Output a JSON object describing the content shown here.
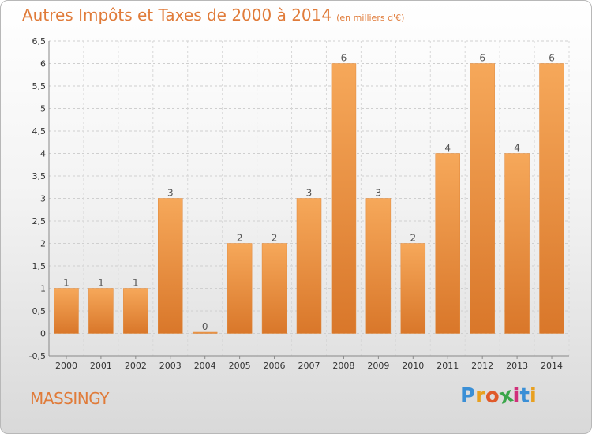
{
  "header": {
    "title": "Autres Impôts et Taxes de 2000 à 2014",
    "unit": "(en milliers d'€)"
  },
  "footer": {
    "commune": "MASSINGY",
    "logo_letters": [
      "P",
      "r",
      "o",
      "x",
      "i",
      "t",
      "i"
    ]
  },
  "colors": {
    "title": "#e07b39",
    "bar_light": "#f6a85a",
    "bar_dark": "#d9772a",
    "logo": [
      "#3a8fd6",
      "#e8a020",
      "#e05a2a",
      "#3aa64a",
      "#d0307a",
      "#3a8fd6",
      "#e8a020"
    ]
  },
  "chart_data": {
    "type": "bar",
    "categories": [
      "2000",
      "2001",
      "2002",
      "2003",
      "2004",
      "2005",
      "2006",
      "2007",
      "2008",
      "2009",
      "2010",
      "2011",
      "2012",
      "2013",
      "2014"
    ],
    "values": [
      1,
      1,
      1,
      3,
      0,
      2,
      2,
      3,
      6,
      3,
      2,
      4,
      6,
      4,
      6
    ],
    "value_labels": [
      "1",
      "1",
      "1",
      "3",
      "0",
      "2",
      "2",
      "3",
      "6",
      "3",
      "2",
      "4",
      "6",
      "4",
      "6"
    ],
    "ylim": [
      -0.5,
      6.5
    ],
    "yticks": [
      "-0,5",
      "0",
      "0,5",
      "1",
      "1,5",
      "2",
      "2,5",
      "3",
      "3,5",
      "4",
      "4,5",
      "5",
      "5,5",
      "6",
      "6,5"
    ],
    "ytick_values": [
      -0.5,
      0,
      0.5,
      1,
      1.5,
      2,
      2.5,
      3,
      3.5,
      4,
      4.5,
      5,
      5.5,
      6,
      6.5
    ],
    "grid": true,
    "legend": "none"
  }
}
